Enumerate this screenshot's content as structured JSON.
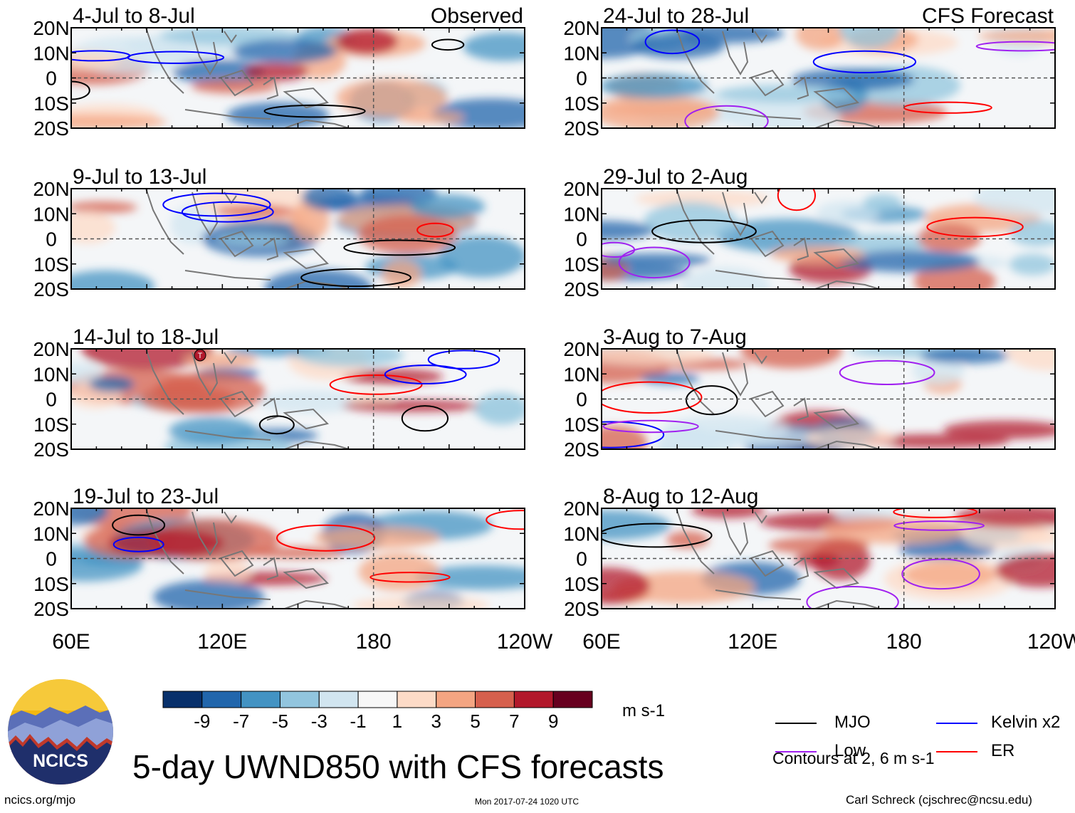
{
  "chart_data": {
    "type": "heatmap",
    "title": "5-day UWND850 with CFS forecasts",
    "variable": "850-hPa zonal wind anomaly",
    "units": "m s-1",
    "x_tick_labels": [
      "60E",
      "120E",
      "180",
      "120W"
    ],
    "y_tick_labels": [
      "20N",
      "10N",
      "0",
      "10S",
      "20S"
    ],
    "x_range": [
      "60E",
      "120W"
    ],
    "y_range": [
      "20S",
      "20N"
    ],
    "colorbar": {
      "labels": [
        "-9",
        "-7",
        "-5",
        "-3",
        "-1",
        "1",
        "3",
        "5",
        "7",
        "9"
      ],
      "colors": [
        "#08306b",
        "#2166ac",
        "#4393c3",
        "#92c5de",
        "#d1e5f0",
        "#f7f7f7",
        "#fddbc7",
        "#f4a582",
        "#d6604d",
        "#b2182b",
        "#67001f"
      ]
    },
    "legend": [
      {
        "name": "MJO",
        "color": "#000000"
      },
      {
        "name": "Kelvin x2",
        "color": "#0000ff"
      },
      {
        "name": "Low",
        "color": "#a020f0"
      },
      {
        "name": "ER",
        "color": "#ff0000"
      }
    ],
    "contour_note": "Contours at 2, 6 m s-1",
    "panels": [
      {
        "period": "4-Jul to 8-Jul",
        "tag": "Observed"
      },
      {
        "period": "9-Jul to 13-Jul",
        "tag": ""
      },
      {
        "period": "14-Jul to 18-Jul",
        "tag": ""
      },
      {
        "period": "19-Jul to 23-Jul",
        "tag": ""
      },
      {
        "period": "24-Jul to 28-Jul",
        "tag": "CFS Forecast"
      },
      {
        "period": "29-Jul to 2-Aug",
        "tag": ""
      },
      {
        "period": "3-Aug to 7-Aug",
        "tag": ""
      },
      {
        "period": "8-Aug to 12-Aug",
        "tag": ""
      }
    ],
    "typhoon_marker": "T"
  },
  "logo": {
    "text": "NCICS"
  },
  "footer": {
    "left": "ncics.org/mjo",
    "middle": "Mon 2017-07-24 1020 UTC",
    "right": "Carl Schreck (cjschrec@ncsu.edu)"
  }
}
